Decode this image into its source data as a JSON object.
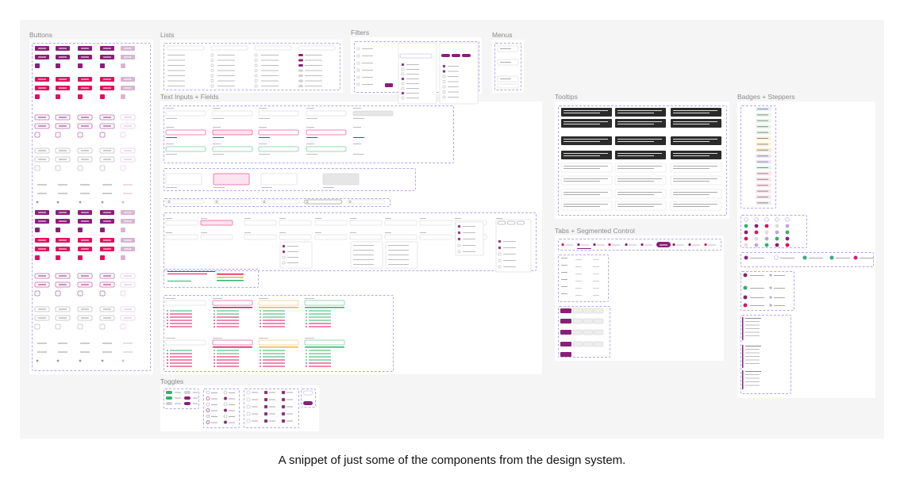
{
  "sections": {
    "buttons": "Buttons",
    "lists": "Lists",
    "filters": "Filters",
    "menus": "Menus",
    "text_inputs": "Text Inputs + Fields",
    "tooltips": "Tooltips",
    "badges": "Badges + Steppers",
    "tabs": "Tabs + Segmented Control",
    "toggles": "Toggles"
  },
  "caption": "A snippet of just some of the components from the design system.",
  "colors": {
    "canvas": "#f5f5f5",
    "primary": "#8a1f7a",
    "accent": "#e0115f",
    "dashed": "#b9a6e8",
    "tooltip_dark": "#2b2b2b",
    "error": "#e0115f",
    "success": "#2fb36a",
    "warning": "#f0b43a"
  },
  "badges": [
    "New",
    "Authorised",
    "Active",
    "Completed",
    "Conditionally Approved",
    "Pending",
    "Awaiting Review",
    "Refunded",
    "Partially Refunded",
    "Partially Captured",
    "In Progress",
    "Placed",
    "Declined",
    "Cancelled",
    "Expired",
    "Rejected",
    "Closed"
  ],
  "icons": [
    "search-icon",
    "check-icon",
    "chevron-down-icon",
    "close-icon",
    "warning-icon"
  ]
}
